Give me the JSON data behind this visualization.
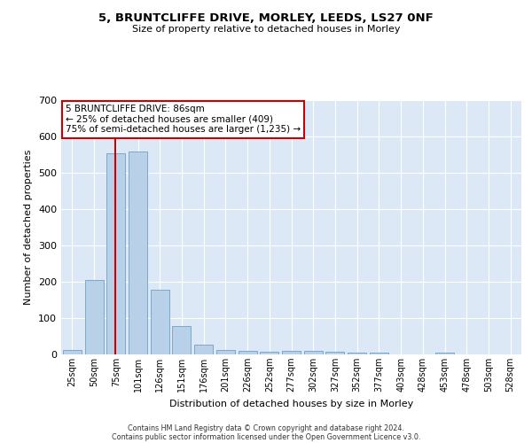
{
  "title1": "5, BRUNTCLIFFE DRIVE, MORLEY, LEEDS, LS27 0NF",
  "title2": "Size of property relative to detached houses in Morley",
  "xlabel": "Distribution of detached houses by size in Morley",
  "ylabel": "Number of detached properties",
  "bar_color": "#b8d0e8",
  "bar_edge_color": "#7aaac8",
  "background_color": "#dce8f5",
  "categories": [
    "25sqm",
    "50sqm",
    "75sqm",
    "101sqm",
    "126sqm",
    "151sqm",
    "176sqm",
    "201sqm",
    "226sqm",
    "252sqm",
    "277sqm",
    "302sqm",
    "327sqm",
    "352sqm",
    "377sqm",
    "403sqm",
    "428sqm",
    "453sqm",
    "478sqm",
    "503sqm",
    "528sqm"
  ],
  "values": [
    13,
    205,
    553,
    558,
    178,
    77,
    28,
    13,
    10,
    7,
    10,
    10,
    7,
    5,
    5,
    0,
    0,
    5,
    0,
    0,
    0
  ],
  "ylim": [
    0,
    700
  ],
  "yticks": [
    0,
    100,
    200,
    300,
    400,
    500,
    600,
    700
  ],
  "annotation_text": "5 BRUNTCLIFFE DRIVE: 86sqm\n← 25% of detached houses are smaller (409)\n75% of semi-detached houses are larger (1,235) →",
  "annotation_box_color": "white",
  "annotation_border_color": "#cc0000",
  "vline_color": "#cc0000",
  "footer1": "Contains HM Land Registry data © Crown copyright and database right 2024.",
  "footer2": "Contains public sector information licensed under the Open Government Licence v3.0."
}
